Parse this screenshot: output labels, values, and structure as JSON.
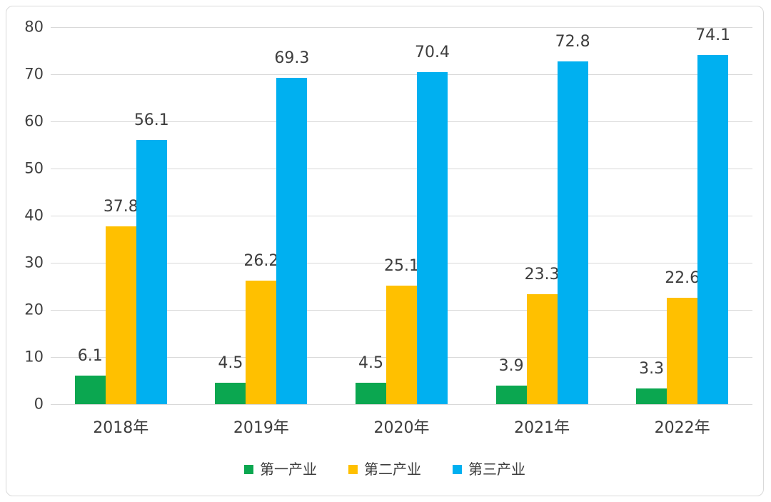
{
  "chart_data": {
    "type": "bar",
    "categories": [
      "2018年",
      "2019年",
      "2020年",
      "2021年",
      "2022年"
    ],
    "series": [
      {
        "name": "第一产业",
        "color": "#0BA750",
        "values": [
          6.1,
          4.5,
          4.5,
          3.9,
          3.3
        ]
      },
      {
        "name": "第二产业",
        "color": "#FFC000",
        "values": [
          37.8,
          26.2,
          25.1,
          23.3,
          22.6
        ]
      },
      {
        "name": "第三产业",
        "color": "#00B0F0",
        "values": [
          56.1,
          69.3,
          70.4,
          72.8,
          74.1
        ]
      }
    ],
    "title": "",
    "xlabel": "",
    "ylabel": "",
    "ylim": [
      0,
      80
    ],
    "y_ticks": [
      0,
      10,
      20,
      30,
      40,
      50,
      60,
      70,
      80
    ],
    "grid": true,
    "gridline_color": "#d9d9d9",
    "legend_position": "bottom",
    "data_labels": true,
    "label_color": "#3d3d3d",
    "frame_border_color": "#d9d9d9"
  }
}
